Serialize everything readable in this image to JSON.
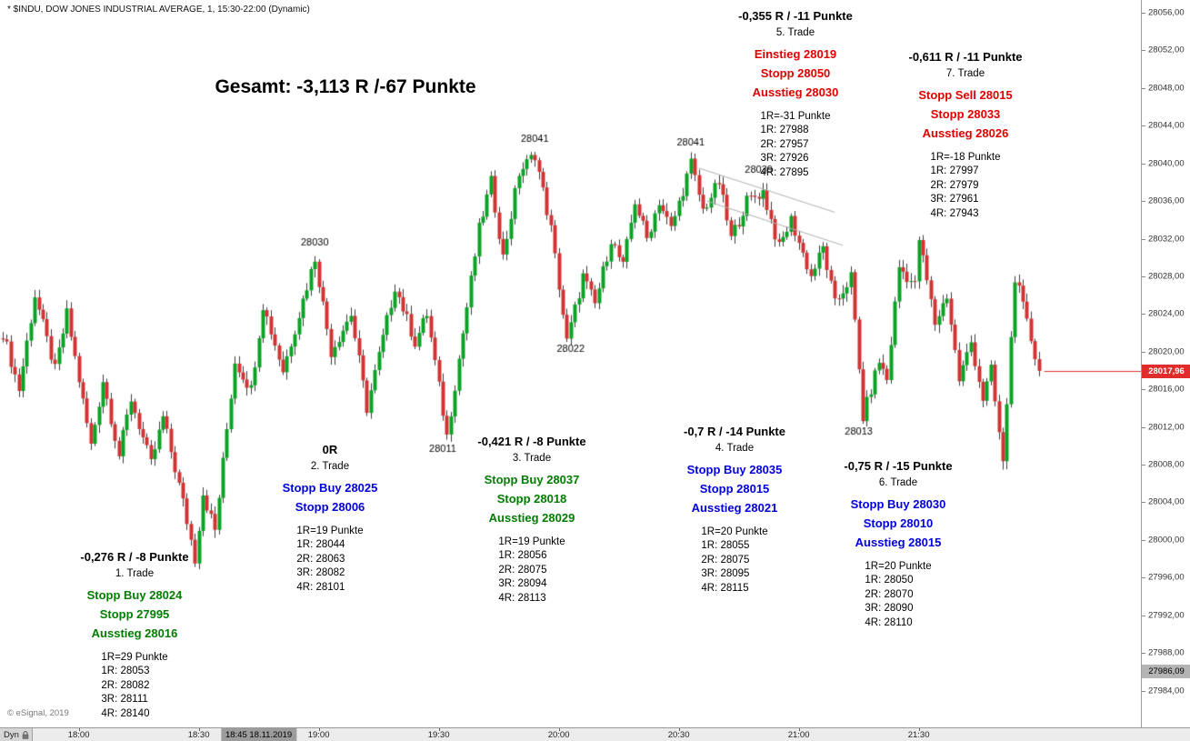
{
  "window": {
    "title": "* $INDU, DOW JONES INDUSTRIAL AVERAGE, 1, 15:30-22:00 (Dynamic)"
  },
  "summary": {
    "text": "Gesamt: -3,113 R /-67 Punkte"
  },
  "footer": {
    "copyright": "© eSignal, 2019",
    "dyn_label": "Dyn"
  },
  "colors": {
    "candle_up": "#0aa325",
    "candle_down": "#d13434",
    "wick": "#3c3c3c",
    "trade_green": "#007d00",
    "trade_blue": "#0000dd",
    "trade_red": "#e00000",
    "last_price_bg": "#e22b2b",
    "session_price_bg": "#b4b4b4",
    "channel_line": "#b0b0b0",
    "last_price_line": "#e03030"
  },
  "chart_data": {
    "type": "candlestick",
    "title": "$INDU, DOW JONES INDUSTRIAL AVERAGE, 1 min, 15:30-22:00 (Dynamic)",
    "visible_time_range": [
      "17:41",
      "22:00"
    ],
    "y_axis": {
      "step": 4,
      "ticks": [
        [
          28056,
          "28056,00"
        ],
        [
          28052,
          "28052,00"
        ],
        [
          28048,
          "28048,00"
        ],
        [
          28044,
          "28044,00"
        ],
        [
          28040,
          "28040,00"
        ],
        [
          28036,
          "28036,00"
        ],
        [
          28032,
          "28032,00"
        ],
        [
          28028,
          "28028,00"
        ],
        [
          28024,
          "28024,00"
        ],
        [
          28020,
          "28020,00"
        ],
        [
          28016,
          "28016,00"
        ],
        [
          28012,
          "28012,00"
        ],
        [
          28008,
          "28008,00"
        ],
        [
          28004,
          "28004,00"
        ],
        [
          28000,
          "28000,00"
        ],
        [
          27996,
          "27996,00"
        ],
        [
          27992,
          "27992,00"
        ],
        [
          27988,
          "27988,00"
        ],
        [
          27984,
          "27984,00"
        ]
      ]
    },
    "x_axis": {
      "ticks": [
        {
          "t": 19,
          "label": "18:00"
        },
        {
          "t": 49,
          "label": "18:30"
        },
        {
          "t": 79,
          "label": "19:00"
        },
        {
          "t": 109,
          "label": "19:30"
        },
        {
          "t": 139,
          "label": "20:00"
        },
        {
          "t": 169,
          "label": "20:30"
        },
        {
          "t": 199,
          "label": "21:00"
        },
        {
          "t": 229,
          "label": "21:30"
        }
      ],
      "highlight": {
        "t": 64,
        "label": "18:45 18.11.2019"
      }
    },
    "last_price": {
      "value": 28017.96,
      "label": "28017,96"
    },
    "session_price": {
      "value": 27986.09,
      "label": "27986,09"
    },
    "price_path": [
      [
        0,
        28022
      ],
      [
        4,
        28016
      ],
      [
        8,
        28026
      ],
      [
        13,
        28018
      ],
      [
        16,
        28024
      ],
      [
        22,
        28010
      ],
      [
        25,
        28017
      ],
      [
        29,
        28009
      ],
      [
        32,
        28015
      ],
      [
        37,
        28008
      ],
      [
        40,
        28013
      ],
      [
        45,
        28004
      ],
      [
        48,
        27998
      ],
      [
        50,
        28005
      ],
      [
        53,
        28001
      ],
      [
        58,
        28019
      ],
      [
        62,
        28016
      ],
      [
        65,
        28025
      ],
      [
        70,
        28018
      ],
      [
        74,
        28024
      ],
      [
        78,
        28030
      ],
      [
        82,
        28020
      ],
      [
        87,
        28024
      ],
      [
        91,
        28014
      ],
      [
        98,
        28027
      ],
      [
        103,
        28021
      ],
      [
        106,
        28024
      ],
      [
        111,
        28011
      ],
      [
        115,
        28022
      ],
      [
        119,
        28033
      ],
      [
        122,
        28038
      ],
      [
        125,
        28030
      ],
      [
        129,
        28039
      ],
      [
        133,
        28041
      ],
      [
        137,
        28033
      ],
      [
        141,
        28021
      ],
      [
        145,
        28028
      ],
      [
        148,
        28025
      ],
      [
        152,
        28032
      ],
      [
        155,
        28029
      ],
      [
        158,
        28036
      ],
      [
        161,
        28032
      ],
      [
        164,
        28036
      ],
      [
        167,
        28033
      ],
      [
        172,
        28040
      ],
      [
        175,
        28035
      ],
      [
        179,
        28038
      ],
      [
        182,
        28032
      ],
      [
        186,
        28036
      ],
      [
        190,
        28037
      ],
      [
        194,
        28031
      ],
      [
        197,
        28034
      ],
      [
        202,
        28028
      ],
      [
        205,
        28031
      ],
      [
        208,
        28025
      ],
      [
        212,
        28028
      ],
      [
        215,
        28013
      ],
      [
        219,
        28019
      ],
      [
        221,
        28017
      ],
      [
        224,
        28029
      ],
      [
        228,
        28027
      ],
      [
        229,
        28032
      ],
      [
        233,
        28023
      ],
      [
        236,
        28026
      ],
      [
        239,
        28017
      ],
      [
        242,
        28021
      ],
      [
        245,
        28015
      ],
      [
        247,
        28018
      ],
      [
        250,
        28008
      ],
      [
        253,
        28028
      ],
      [
        256,
        28023
      ],
      [
        259,
        28017.96
      ]
    ],
    "price_labels": [
      {
        "text": "28030",
        "t": 78,
        "p": 28031.6
      },
      {
        "text": "28041",
        "t": 133,
        "p": 28042.6
      },
      {
        "text": "28022",
        "t": 142,
        "p": 28020.3
      },
      {
        "text": "28011",
        "t": 110,
        "p": 28009.7
      },
      {
        "text": "28041",
        "t": 172,
        "p": 28042.2
      },
      {
        "text": "28039",
        "t": 189,
        "p": 28039.3
      },
      {
        "text": "28013",
        "t": 214,
        "p": 28011.5
      }
    ],
    "channel_lines": [
      {
        "t1": 174,
        "p1": 28039.5,
        "t2": 208,
        "p2": 28034.8
      },
      {
        "t1": 176,
        "p1": 28036.0,
        "t2": 210,
        "p2": 28031.3
      }
    ]
  },
  "trades": [
    {
      "result": "-0,276 R / -8 Punkte",
      "name": "1. Trade",
      "color": "green",
      "lines": [
        "Stopp Buy 28024",
        "Stopp 27995",
        "Ausstieg 28016"
      ],
      "r_lines": [
        "1R=29 Punkte",
        "1R: 28053",
        "2R: 28082",
        "3R: 28111",
        "4R: 28140"
      ]
    },
    {
      "result": "0R",
      "name": "2. Trade",
      "color": "blue",
      "lines": [
        "Stopp Buy 28025",
        "Stopp 28006"
      ],
      "r_lines": [
        "1R=19 Punkte",
        "1R: 28044",
        "2R: 28063",
        "3R: 28082",
        "4R: 28101"
      ]
    },
    {
      "result": "-0,421 R / -8 Punkte",
      "name": "3. Trade",
      "color": "green",
      "lines": [
        "Stopp Buy 28037",
        "Stopp 28018",
        "Ausstieg 28029"
      ],
      "r_lines": [
        "1R=19 Punkte",
        "1R: 28056",
        "2R: 28075",
        "3R: 28094",
        "4R: 28113"
      ]
    },
    {
      "result": "-0,7 R / -14 Punkte",
      "name": "4. Trade",
      "color": "blue",
      "lines": [
        "Stopp Buy 28035",
        "Stopp 28015",
        "Ausstieg 28021"
      ],
      "r_lines": [
        "1R=20 Punkte",
        "1R: 28055",
        "2R: 28075",
        "3R: 28095",
        "4R: 28115"
      ]
    },
    {
      "result": "-0,355 R / -11 Punkte",
      "name": "5. Trade",
      "color": "red",
      "lines": [
        "Einstieg 28019",
        "Stopp 28050",
        "Ausstieg 28030"
      ],
      "r_lines": [
        "1R=-31 Punkte",
        "1R: 27988",
        "2R: 27957",
        "3R: 27926",
        "4R: 27895"
      ]
    },
    {
      "result": "-0,75 R / -15 Punkte",
      "name": "6. Trade",
      "color": "blue",
      "lines": [
        "Stopp Buy 28030",
        "Stopp 28010",
        "Ausstieg 28015"
      ],
      "r_lines": [
        "1R=20 Punkte",
        "1R: 28050",
        "2R: 28070",
        "3R: 28090",
        "4R: 28110"
      ]
    },
    {
      "result": "-0,611 R / -11 Punkte",
      "name": "7. Trade",
      "color": "red",
      "lines": [
        "Stopp Sell 28015",
        "Stopp 28033",
        "Ausstieg 28026"
      ],
      "r_lines": [
        "1R=-18 Punkte",
        "1R: 27997",
        "2R: 27979",
        "3R: 27961",
        "4R: 27943"
      ]
    }
  ]
}
